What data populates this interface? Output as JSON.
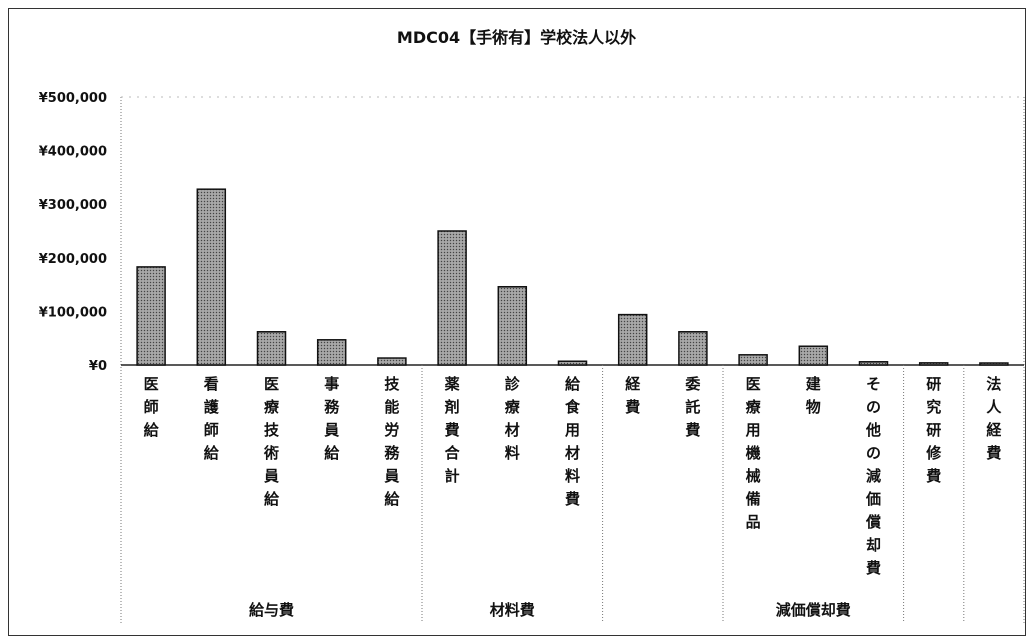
{
  "chart_data": {
    "type": "bar",
    "title": "MDC04【手術有】学校法人以外",
    "xlabel": "",
    "ylabel": "",
    "ylim": [
      0,
      500000
    ],
    "yticks": [
      "¥500,000",
      "¥400,000",
      "¥300,000",
      "¥200,000",
      "¥100,000",
      "¥0"
    ],
    "categories": [
      "医師給",
      "看護師給",
      "医療技術員給",
      "事務員給",
      "技能労務員給",
      "薬剤費合計",
      "診療材料",
      "給食用材料費",
      "経費",
      "委託費",
      "医療用機械備品",
      "建物",
      "その他の減価償却費",
      "研究研修費",
      "法人経費"
    ],
    "values": [
      183000,
      328000,
      62000,
      47000,
      13000,
      250000,
      146000,
      7000,
      94000,
      62000,
      19000,
      35000,
      6000,
      4000,
      3000
    ],
    "groups": [
      {
        "label": "給与費",
        "start": 0,
        "end": 4
      },
      {
        "label": "材料費",
        "start": 5,
        "end": 7
      },
      {
        "label": "",
        "start": 8,
        "end": 9
      },
      {
        "label": "減価償却費",
        "start": 10,
        "end": 12
      },
      {
        "label": "",
        "start": 13,
        "end": 13
      },
      {
        "label": "",
        "start": 14,
        "end": 14
      }
    ],
    "bar_color": "#999999",
    "grid": false,
    "legend": "none"
  }
}
